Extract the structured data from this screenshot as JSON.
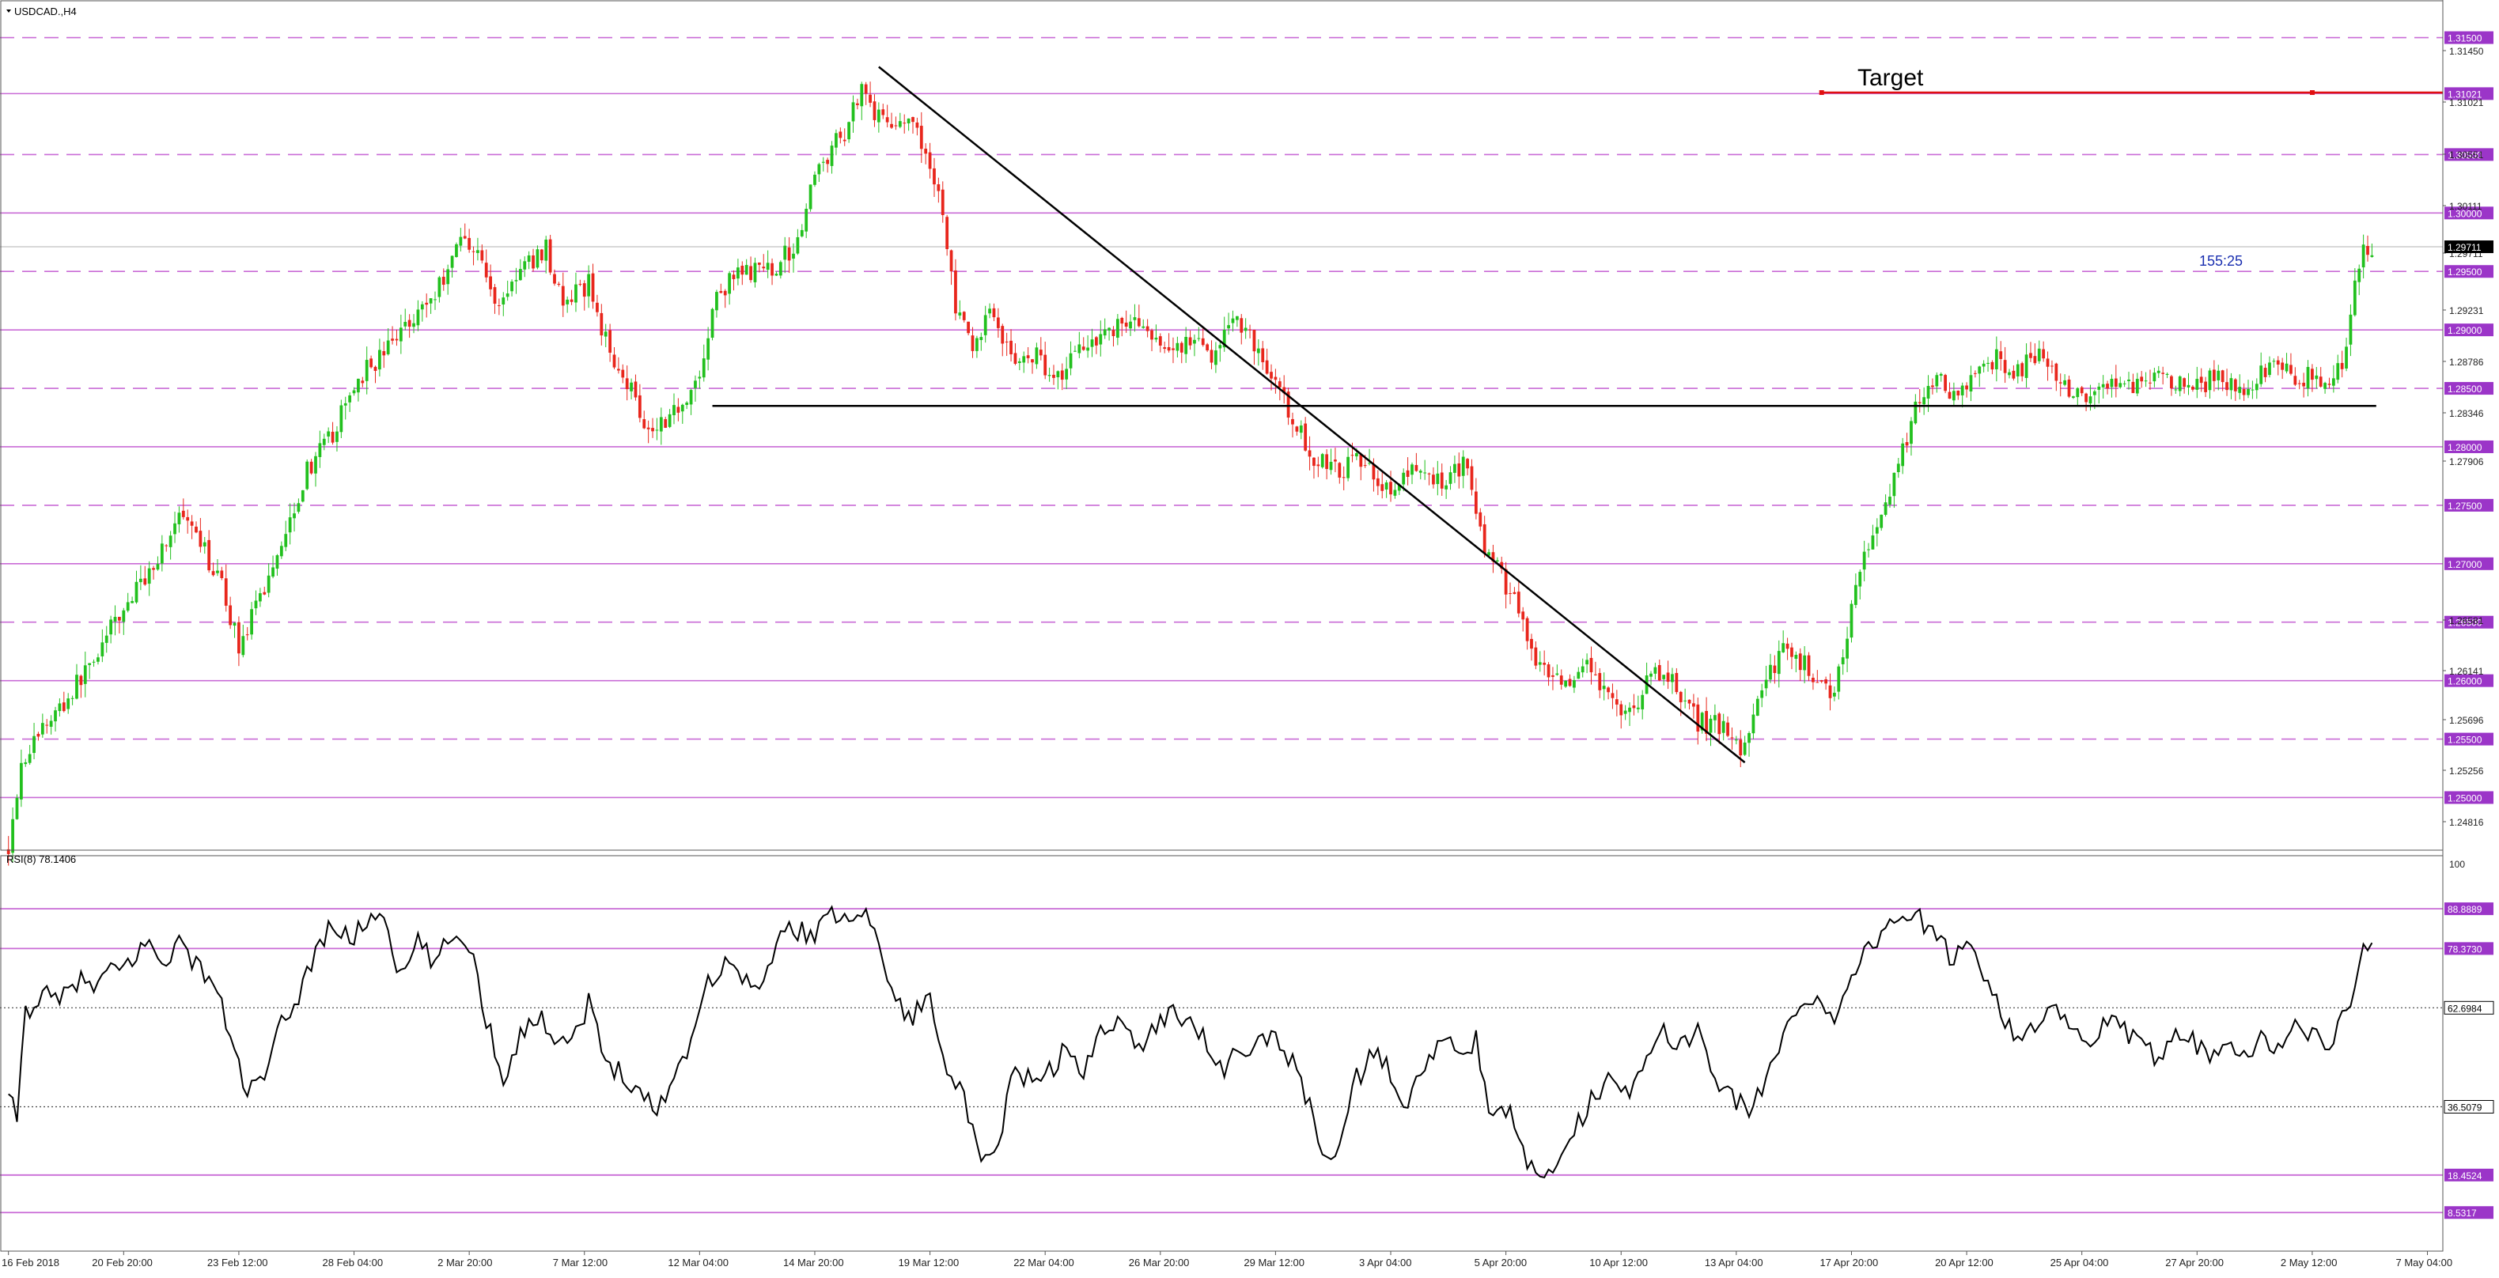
{
  "window": {
    "symbol_label": "USDCAD.,H4",
    "rsi_label": "RSI(8) 78.1406"
  },
  "colors": {
    "bull": "#22c01e",
    "bear": "#e8261c",
    "level_line": "#c96bd6",
    "tag_bg": "#9b35c8",
    "target_line": "#e01010",
    "trend_line": "#000000",
    "timer": "#1a2fb0"
  },
  "annotations": {
    "target_label": "Target",
    "countdown": "155:25",
    "current_price_tag": "1.29711"
  },
  "chart_data": [
    {
      "type": "candlestick",
      "symbol": "USDCAD",
      "timeframe": "H4",
      "ylim": [
        1.2455,
        1.317
      ],
      "price_axis_ticks": [
        "1.31450",
        "1.31021",
        "1.30551",
        "1.30111",
        "1.29711",
        "1.29231",
        "1.28786",
        "1.28346",
        "1.27906",
        "1.26581",
        "1.26141",
        "1.25696",
        "1.25256",
        "1.24816"
      ],
      "level_tags": [
        "1.31500",
        "1.31021",
        "1.30500",
        "1.30000",
        "1.29500",
        "1.29000",
        "1.28500",
        "1.28000",
        "1.27500",
        "1.27000",
        "1.26500",
        "1.26000",
        "1.25500",
        "1.25000"
      ],
      "level_values": [
        1.315,
        1.31021,
        1.305,
        1.3,
        1.295,
        1.29,
        1.285,
        1.28,
        1.275,
        1.27,
        1.265,
        1.26,
        1.255,
        1.25
      ],
      "level_styles": [
        "dashed",
        "solid",
        "dashed",
        "solid",
        "dashed",
        "solid",
        "dashed",
        "solid",
        "dashed",
        "solid",
        "dashed",
        "solid",
        "dashed",
        "solid"
      ],
      "x_ticks": [
        {
          "label": "16 Feb 2018",
          "bar": 0
        },
        {
          "label": "20 Feb 20:00",
          "bar": 27
        },
        {
          "label": "23 Feb 12:00",
          "bar": 54
        },
        {
          "label": "28 Feb 04:00",
          "bar": 81
        },
        {
          "label": "2 Mar 20:00",
          "bar": 108
        },
        {
          "label": "7 Mar 12:00",
          "bar": 135
        },
        {
          "label": "12 Mar 04:00",
          "bar": 162
        },
        {
          "label": "14 Mar 20:00",
          "bar": 189
        },
        {
          "label": "19 Mar 12:00",
          "bar": 216
        },
        {
          "label": "22 Mar 04:00",
          "bar": 243
        },
        {
          "label": "26 Mar 20:00",
          "bar": 270
        },
        {
          "label": "29 Mar 12:00",
          "bar": 297
        },
        {
          "label": "3 Apr 04:00",
          "bar": 324
        },
        {
          "label": "5 Apr 20:00",
          "bar": 351
        },
        {
          "label": "10 Apr 12:00",
          "bar": 378
        },
        {
          "label": "13 Apr 04:00",
          "bar": 405
        },
        {
          "label": "17 Apr 20:00",
          "bar": 432
        },
        {
          "label": "20 Apr 12:00",
          "bar": 459
        },
        {
          "label": "25 Apr 04:00",
          "bar": 486
        },
        {
          "label": "27 Apr 20:00",
          "bar": 513
        },
        {
          "label": "2 May 12:00",
          "bar": 540
        },
        {
          "label": "7 May 04:00",
          "bar": 567
        }
      ],
      "total_bars": 570,
      "close_anchors": [
        [
          0,
          1.246
        ],
        [
          3,
          1.253
        ],
        [
          8,
          1.256
        ],
        [
          14,
          1.2585
        ],
        [
          20,
          1.262
        ],
        [
          26,
          1.2655
        ],
        [
          34,
          1.27
        ],
        [
          40,
          1.274
        ],
        [
          46,
          1.271
        ],
        [
          50,
          1.268
        ],
        [
          54,
          1.263
        ],
        [
          58,
          1.266
        ],
        [
          64,
          1.272
        ],
        [
          70,
          1.278
        ],
        [
          76,
          1.281
        ],
        [
          82,
          1.286
        ],
        [
          88,
          1.288
        ],
        [
          94,
          1.291
        ],
        [
          100,
          1.293
        ],
        [
          106,
          1.298
        ],
        [
          110,
          1.297
        ],
        [
          114,
          1.292
        ],
        [
          120,
          1.295
        ],
        [
          126,
          1.297
        ],
        [
          130,
          1.292
        ],
        [
          136,
          1.294
        ],
        [
          140,
          1.289
        ],
        [
          146,
          1.285
        ],
        [
          150,
          1.2815
        ],
        [
          156,
          1.283
        ],
        [
          162,
          1.286
        ],
        [
          166,
          1.293
        ],
        [
          172,
          1.295
        ],
        [
          178,
          1.295
        ],
        [
          184,
          1.297
        ],
        [
          190,
          1.304
        ],
        [
          196,
          1.307
        ],
        [
          200,
          1.311
        ],
        [
          204,
          1.308
        ],
        [
          210,
          1.308
        ],
        [
          214,
          1.306
        ],
        [
          218,
          1.302
        ],
        [
          222,
          1.292
        ],
        [
          226,
          1.288
        ],
        [
          230,
          1.292
        ],
        [
          236,
          1.287
        ],
        [
          240,
          1.288
        ],
        [
          246,
          1.286
        ],
        [
          252,
          1.289
        ],
        [
          258,
          1.29
        ],
        [
          264,
          1.291
        ],
        [
          270,
          1.288
        ],
        [
          276,
          1.289
        ],
        [
          282,
          1.288
        ],
        [
          288,
          1.291
        ],
        [
          292,
          1.289
        ],
        [
          296,
          1.286
        ],
        [
          300,
          1.283
        ],
        [
          306,
          1.279
        ],
        [
          312,
          1.278
        ],
        [
          318,
          1.279
        ],
        [
          324,
          1.276
        ],
        [
          330,
          1.278
        ],
        [
          336,
          1.277
        ],
        [
          342,
          1.279
        ],
        [
          346,
          1.271
        ],
        [
          350,
          1.269
        ],
        [
          354,
          1.266
        ],
        [
          358,
          1.261
        ],
        [
          362,
          1.26
        ],
        [
          366,
          1.259
        ],
        [
          370,
          1.261
        ],
        [
          376,
          1.258
        ],
        [
          380,
          1.257
        ],
        [
          386,
          1.261
        ],
        [
          392,
          1.259
        ],
        [
          396,
          1.2565
        ],
        [
          402,
          1.256
        ],
        [
          406,
          1.2538
        ],
        [
          410,
          1.258
        ],
        [
          416,
          1.263
        ],
        [
          422,
          1.261
        ],
        [
          428,
          1.259
        ],
        [
          432,
          1.266
        ],
        [
          436,
          1.272
        ],
        [
          440,
          1.275
        ],
        [
          444,
          1.28
        ],
        [
          448,
          1.284
        ],
        [
          452,
          1.286
        ],
        [
          456,
          1.284
        ],
        [
          462,
          1.286
        ],
        [
          466,
          1.288
        ],
        [
          470,
          1.286
        ],
        [
          476,
          1.288
        ],
        [
          482,
          1.285
        ],
        [
          488,
          1.284
        ],
        [
          494,
          1.286
        ],
        [
          500,
          1.285
        ],
        [
          506,
          1.286
        ],
        [
          512,
          1.285
        ],
        [
          518,
          1.286
        ],
        [
          524,
          1.285
        ],
        [
          530,
          1.287
        ],
        [
          536,
          1.286
        ],
        [
          540,
          1.286
        ],
        [
          544,
          1.286
        ],
        [
          548,
          1.288
        ],
        [
          550,
          1.294
        ],
        [
          552,
          1.2975
        ],
        [
          554,
          1.2971
        ]
      ],
      "horizontal_line_price": 1.2835,
      "horizontal_line_bars": [
        165,
        555
      ],
      "target_price": 1.3103,
      "target_line_bars": [
        425,
        600
      ],
      "trendline": [
        [
          204,
          1.3125
        ],
        [
          407,
          1.253
        ]
      ]
    },
    {
      "type": "line",
      "indicator": "RSI",
      "period": 8,
      "current_value": 78.1406,
      "ylim": [
        0,
        100
      ],
      "axis_top_label": "100",
      "level_tags": [
        "88.8889",
        "78.3730",
        "62.6984",
        "36.5079",
        "18.4524",
        "8.5317"
      ],
      "level_values": [
        88.8889,
        78.373,
        62.6984,
        36.5079,
        18.4524,
        8.5317
      ],
      "level_styles": [
        "solid",
        "solid",
        "dotted",
        "dotted",
        "solid",
        "solid"
      ],
      "value_anchors": [
        [
          0,
          38
        ],
        [
          2,
          34
        ],
        [
          4,
          62
        ],
        [
          8,
          66
        ],
        [
          12,
          64
        ],
        [
          16,
          70
        ],
        [
          20,
          68
        ],
        [
          24,
          72
        ],
        [
          28,
          74
        ],
        [
          32,
          80
        ],
        [
          36,
          75
        ],
        [
          40,
          80
        ],
        [
          44,
          74
        ],
        [
          48,
          70
        ],
        [
          52,
          55
        ],
        [
          56,
          40
        ],
        [
          60,
          44
        ],
        [
          64,
          58
        ],
        [
          68,
          66
        ],
        [
          72,
          78
        ],
        [
          76,
          85
        ],
        [
          80,
          80
        ],
        [
          84,
          86
        ],
        [
          88,
          88
        ],
        [
          92,
          70
        ],
        [
          96,
          80
        ],
        [
          100,
          74
        ],
        [
          104,
          82
        ],
        [
          108,
          80
        ],
        [
          112,
          60
        ],
        [
          116,
          44
        ],
        [
          120,
          56
        ],
        [
          124,
          60
        ],
        [
          128,
          56
        ],
        [
          132,
          54
        ],
        [
          136,
          64
        ],
        [
          140,
          48
        ],
        [
          144,
          46
        ],
        [
          148,
          40
        ],
        [
          152,
          36
        ],
        [
          156,
          44
        ],
        [
          160,
          55
        ],
        [
          164,
          70
        ],
        [
          168,
          74
        ],
        [
          172,
          72
        ],
        [
          176,
          66
        ],
        [
          180,
          80
        ],
        [
          184,
          84
        ],
        [
          188,
          82
        ],
        [
          192,
          86
        ],
        [
          196,
          88
        ],
        [
          200,
          89
        ],
        [
          204,
          80
        ],
        [
          208,
          64
        ],
        [
          212,
          60
        ],
        [
          216,
          66
        ],
        [
          220,
          48
        ],
        [
          224,
          38
        ],
        [
          228,
          20
        ],
        [
          232,
          26
        ],
        [
          236,
          48
        ],
        [
          240,
          42
        ],
        [
          244,
          46
        ],
        [
          248,
          52
        ],
        [
          252,
          44
        ],
        [
          256,
          58
        ],
        [
          260,
          60
        ],
        [
          264,
          52
        ],
        [
          268,
          56
        ],
        [
          272,
          62
        ],
        [
          276,
          60
        ],
        [
          280,
          56
        ],
        [
          284,
          46
        ],
        [
          288,
          50
        ],
        [
          292,
          52
        ],
        [
          296,
          56
        ],
        [
          300,
          50
        ],
        [
          304,
          40
        ],
        [
          308,
          24
        ],
        [
          312,
          26
        ],
        [
          316,
          44
        ],
        [
          320,
          50
        ],
        [
          324,
          46
        ],
        [
          328,
          36
        ],
        [
          332,
          48
        ],
        [
          336,
          54
        ],
        [
          340,
          50
        ],
        [
          344,
          54
        ],
        [
          348,
          32
        ],
        [
          352,
          36
        ],
        [
          356,
          20
        ],
        [
          360,
          18
        ],
        [
          364,
          26
        ],
        [
          368,
          32
        ],
        [
          372,
          40
        ],
        [
          376,
          46
        ],
        [
          380,
          40
        ],
        [
          384,
          48
        ],
        [
          388,
          56
        ],
        [
          392,
          52
        ],
        [
          396,
          58
        ],
        [
          400,
          44
        ],
        [
          404,
          40
        ],
        [
          408,
          34
        ],
        [
          412,
          44
        ],
        [
          416,
          56
        ],
        [
          420,
          62
        ],
        [
          424,
          66
        ],
        [
          428,
          60
        ],
        [
          432,
          72
        ],
        [
          436,
          78
        ],
        [
          440,
          84
        ],
        [
          444,
          88
        ],
        [
          448,
          86
        ],
        [
          452,
          80
        ],
        [
          456,
          76
        ],
        [
          460,
          80
        ],
        [
          464,
          70
        ],
        [
          468,
          60
        ],
        [
          472,
          54
        ],
        [
          476,
          58
        ],
        [
          480,
          62
        ],
        [
          484,
          56
        ],
        [
          488,
          52
        ],
        [
          492,
          60
        ],
        [
          496,
          56
        ],
        [
          500,
          52
        ],
        [
          504,
          50
        ],
        [
          508,
          58
        ],
        [
          512,
          54
        ],
        [
          516,
          50
        ],
        [
          520,
          56
        ],
        [
          524,
          50
        ],
        [
          528,
          54
        ],
        [
          532,
          52
        ],
        [
          536,
          58
        ],
        [
          540,
          56
        ],
        [
          544,
          52
        ],
        [
          548,
          62
        ],
        [
          552,
          78
        ],
        [
          554,
          78
        ]
      ]
    }
  ]
}
